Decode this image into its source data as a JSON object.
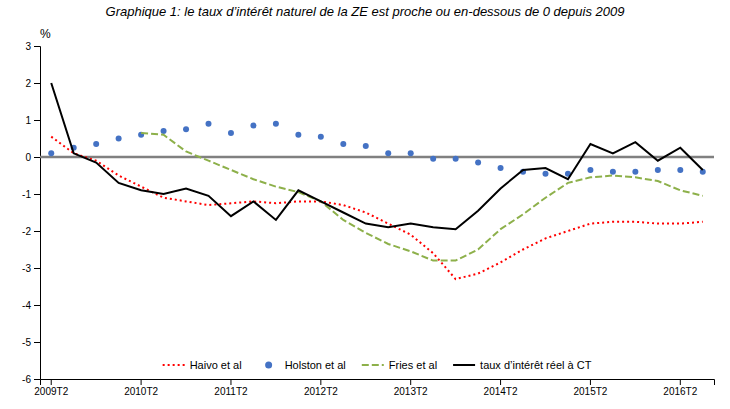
{
  "chart_data": {
    "type": "line",
    "title": "Graphique 1: le taux d’intérêt naturel de la ZE est proche ou en-dessous de 0 depuis 2009",
    "ylabel": "%",
    "categories": [
      "2009T2",
      null,
      null,
      null,
      "2010T2",
      null,
      null,
      null,
      "2011T2",
      null,
      null,
      null,
      "2012T2",
      null,
      null,
      null,
      "2013T2",
      null,
      null,
      null,
      "2014T2",
      null,
      null,
      null,
      "2015T2",
      null,
      null,
      null,
      "2016T2",
      null
    ],
    "series": [
      {
        "name": "Haivo et al",
        "color": "#ff0000",
        "type": "line",
        "line_style": "dotted",
        "values": [
          0.55,
          0.1,
          -0.1,
          -0.5,
          -0.8,
          -1.1,
          -1.2,
          -1.3,
          -1.25,
          -1.2,
          -1.25,
          -1.2,
          -1.2,
          -1.3,
          -1.5,
          -1.8,
          -2.1,
          -2.6,
          -3.3,
          -3.15,
          -2.85,
          -2.5,
          -2.2,
          -2.0,
          -1.8,
          -1.75,
          -1.75,
          -1.8,
          -1.8,
          -1.75
        ]
      },
      {
        "name": "Holston et al",
        "color": "#4472c4",
        "type": "scatter",
        "marker": "circle",
        "values": [
          0.1,
          0.25,
          0.35,
          0.5,
          0.6,
          0.7,
          0.75,
          0.9,
          0.65,
          0.85,
          0.9,
          0.6,
          0.55,
          0.35,
          0.3,
          0.1,
          0.1,
          -0.05,
          -0.05,
          -0.15,
          -0.3,
          -0.4,
          -0.45,
          -0.45,
          -0.35,
          -0.4,
          -0.4,
          -0.35,
          -0.35,
          -0.4
        ]
      },
      {
        "name": "Fries et al",
        "color": "#8db04a",
        "type": "line",
        "line_style": "dashed",
        "values": [
          null,
          null,
          null,
          null,
          0.65,
          0.6,
          0.15,
          -0.1,
          -0.35,
          -0.6,
          -0.8,
          -0.95,
          -1.2,
          -1.7,
          -2.05,
          -2.35,
          -2.55,
          -2.8,
          -2.8,
          -2.5,
          -1.95,
          -1.55,
          -1.1,
          -0.7,
          -0.55,
          -0.5,
          -0.55,
          -0.65,
          -0.9,
          -1.05
        ]
      },
      {
        "name": "taux d’intérêt réel à CT",
        "color": "#000000",
        "type": "line",
        "line_style": "solid",
        "values": [
          2.0,
          0.1,
          -0.15,
          -0.7,
          -0.9,
          -1.0,
          -0.85,
          -1.05,
          -1.6,
          -1.2,
          -1.7,
          -0.9,
          -1.2,
          -1.5,
          -1.8,
          -1.9,
          -1.8,
          -1.9,
          -1.95,
          -1.45,
          -0.85,
          -0.35,
          -0.3,
          -0.6,
          0.35,
          0.1,
          0.4,
          -0.1,
          0.25,
          -0.35
        ]
      }
    ],
    "hline": {
      "value": 0,
      "color": "#808080"
    },
    "ylim": [
      -6,
      3
    ],
    "yticks": [
      -6,
      -5,
      -4,
      -3,
      -2,
      -1,
      0,
      1,
      2,
      3
    ],
    "grid": false,
    "legend": "bottom"
  }
}
